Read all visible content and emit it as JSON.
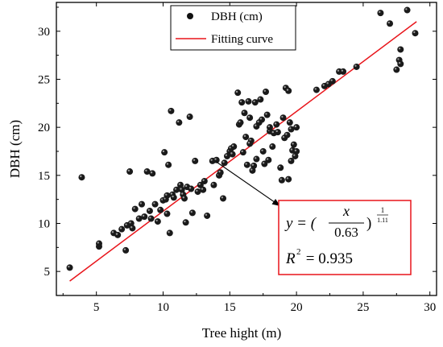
{
  "chart_data": {
    "type": "scatter",
    "xlabel": "Tree hight (m)",
    "ylabel": "DBH (cm)",
    "xlim": [
      2,
      30.5
    ],
    "ylim": [
      2.5,
      33
    ],
    "xticks": [
      5,
      10,
      15,
      20,
      25,
      30
    ],
    "yticks": [
      5,
      10,
      15,
      20,
      25,
      30
    ],
    "grid": false,
    "legend_position": "top-center",
    "series": [
      {
        "name": "DBH (cm)",
        "type": "scatter",
        "color": "#000000",
        "x": [
          3.0,
          3.9,
          5.2,
          5.2,
          6.3,
          6.6,
          6.9,
          7.2,
          7.3,
          7.5,
          7.6,
          7.7,
          7.9,
          8.2,
          8.4,
          8.6,
          8.8,
          9.0,
          9.1,
          9.2,
          9.4,
          9.6,
          9.8,
          10.0,
          10.1,
          10.2,
          10.3,
          10.3,
          10.4,
          10.5,
          10.6,
          10.7,
          10.8,
          11.0,
          11.2,
          11.3,
          11.4,
          11.5,
          11.6,
          11.7,
          11.8,
          12.0,
          12.1,
          12.2,
          12.4,
          12.6,
          12.8,
          13.0,
          13.1,
          13.3,
          13.7,
          13.8,
          14.0,
          14.2,
          14.3,
          14.5,
          14.6,
          14.8,
          15.0,
          15.1,
          15.2,
          15.3,
          15.6,
          15.7,
          15.8,
          15.9,
          16.0,
          16.1,
          16.2,
          16.3,
          16.4,
          16.5,
          16.6,
          16.7,
          16.8,
          16.9,
          17.0,
          17.2,
          17.3,
          17.4,
          17.5,
          17.6,
          17.7,
          17.8,
          17.9,
          18.0,
          18.2,
          18.3,
          18.5,
          18.6,
          18.8,
          18.9,
          19.0,
          19.1,
          19.2,
          19.3,
          19.4,
          19.5,
          19.6,
          19.7,
          19.8,
          19.9,
          20.0,
          20.0,
          19.6,
          19.4,
          18.0,
          16.5,
          17.0,
          21.5,
          22.1,
          22.4,
          22.7,
          23.2,
          23.5,
          24.5,
          26.3,
          27.0,
          27.5,
          27.7,
          27.8,
          27.8,
          28.3,
          28.9
        ],
        "y": [
          5.4,
          14.8,
          7.6,
          7.9,
          9.0,
          8.8,
          9.4,
          7.2,
          9.8,
          15.4,
          10.0,
          9.5,
          11.5,
          10.5,
          12.0,
          10.7,
          15.4,
          11.3,
          10.5,
          15.2,
          12.0,
          10.2,
          11.4,
          12.4,
          17.4,
          12.5,
          11.0,
          12.9,
          16.1,
          9.0,
          21.7,
          13.0,
          12.7,
          13.5,
          20.5,
          14.0,
          13.5,
          13.0,
          12.6,
          10.1,
          13.8,
          21.1,
          13.6,
          11.1,
          16.5,
          13.3,
          14.0,
          13.5,
          14.4,
          10.8,
          16.5,
          14.0,
          16.6,
          15.0,
          15.3,
          12.6,
          16.3,
          17.0,
          17.5,
          17.8,
          17.2,
          18.0,
          23.6,
          20.3,
          20.5,
          22.6,
          17.4,
          21.5,
          19.0,
          16.1,
          22.7,
          21.0,
          18.6,
          15.5,
          16.0,
          22.6,
          20.1,
          20.5,
          22.9,
          20.8,
          17.5,
          16.2,
          23.7,
          21.3,
          16.6,
          19.6,
          18.0,
          19.4,
          20.3,
          19.5,
          15.8,
          14.5,
          21.0,
          18.9,
          24.1,
          19.2,
          23.8,
          20.5,
          19.8,
          17.6,
          18.2,
          17.0,
          20.0,
          17.5,
          16.5,
          14.6,
          20.0,
          18.3,
          16.7,
          23.9,
          24.3,
          24.5,
          24.8,
          25.8,
          25.8,
          26.3,
          31.9,
          30.8,
          26.0,
          27.0,
          26.6,
          28.1,
          32.2,
          29.8
        ]
      },
      {
        "name": "Fitting curve",
        "type": "line",
        "color": "#e8141a",
        "x": [
          3.0,
          29.0
        ],
        "y": [
          4.0,
          31.0
        ]
      }
    ],
    "annotation": {
      "equation": "y = (x / 0.63)^(1/1.11)",
      "eq_lhs": "y = (",
      "eq_num": "x",
      "eq_den": "0.63",
      "eq_rhs": ")",
      "eq_exp_num": "1",
      "eq_exp_den": "1.11",
      "r2_lhs": "R",
      "r2_sup": "2",
      "r2_rhs": " = 0.935",
      "arrow_from": [
        14.0,
        16.4
      ],
      "box_border_color": "#e8141a"
    }
  }
}
